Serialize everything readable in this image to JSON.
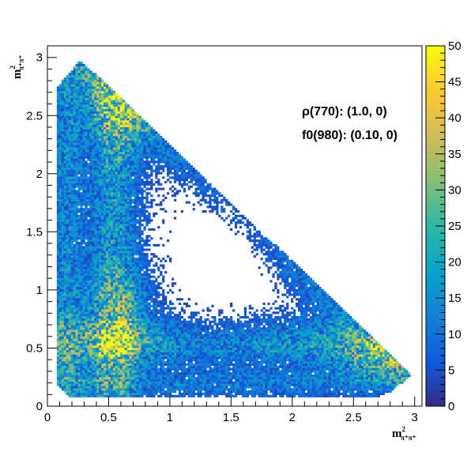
{
  "chart_data": {
    "type": "heatmap",
    "title": "",
    "xlabel": {
      "base": "m",
      "sup": "2",
      "sub": "π⁺π⁺"
    },
    "ylabel": {
      "base": "m",
      "sup": "2",
      "sub": "π⁺π⁺"
    },
    "xlim": [
      0,
      3.06
    ],
    "ylim": [
      0,
      3.1
    ],
    "x_ticks": [
      "0",
      "0.5",
      "1",
      "1.5",
      "2",
      "2.5",
      "3"
    ],
    "y_ticks": [
      "0",
      "0.5",
      "1",
      "1.5",
      "2",
      "2.5",
      "3"
    ],
    "z_range": [
      0,
      50
    ],
    "colorbar_ticks": [
      "0",
      "5",
      "10",
      "15",
      "20",
      "25",
      "30",
      "35",
      "40",
      "45",
      "50"
    ],
    "annotations": [
      "ρ(770): (1.0, 0)",
      "f0(980): (0.10, 0)"
    ],
    "colormap": [
      "#352a87",
      "#0f5cdd",
      "#1481d6",
      "#06a4ca",
      "#2eb7a4",
      "#87bf77",
      "#d1bb59",
      "#fec832",
      "#f9fb0e"
    ],
    "density_features": {
      "phase_space_boundary": "triangular Dalitz region, x from 0.08 to 2.98, y from 0.08 to 2.98, x + y <= 3.25",
      "hot_spots": [
        {
          "x": 0.55,
          "y": 0.55,
          "level": 20
        },
        {
          "x": 0.6,
          "y": 2.6,
          "level": 12
        },
        {
          "x": 0.6,
          "y": 0.9,
          "level": 10
        },
        {
          "x": 2.7,
          "y": 0.4,
          "level": 8
        }
      ],
      "bands": [
        {
          "orientation": "horizontal",
          "y": 0.55,
          "level": 8
        },
        {
          "orientation": "vertical",
          "x": 0.55,
          "level": 8
        },
        {
          "orientation": "diagonal_edge",
          "level": 6
        }
      ]
    }
  }
}
